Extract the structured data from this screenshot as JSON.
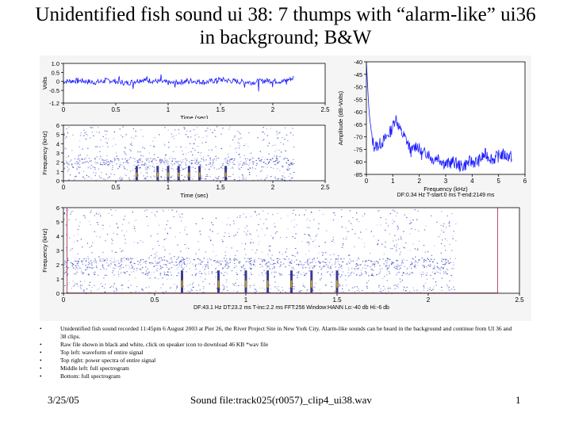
{
  "slide": {
    "title": "Unidentified fish sound ui 38: 7 thumps with “alarm-like” ui36 in background; B&W",
    "bullets": [
      "Unidentified fish sound recorded 11:45pm 6 August 2003 at Pier 26, the River Project Site in New York City.  Alarm-like sounds can be heard in the background and continue from UI 36 and 38 clips.",
      "Raw file shown in black and white, click on speaker icon to download 46 KB *wav file",
      "Top left: waveform of entire signal",
      "Top right: power spectra of entire signal",
      "Middle left: full spectrogram",
      "Bottom: full spectrogram"
    ],
    "footer": {
      "date": "3/25/05",
      "file": "Sound file:track025(r0057)_clip4_ui38.wav",
      "page": "1"
    }
  },
  "colors": {
    "trace": "#1a1aff",
    "spectro": "#2233bb",
    "axis": "#000000",
    "bg": "#f5f5f5",
    "bound": "#aa2244"
  },
  "chart_data": [
    {
      "type": "line",
      "panel": "waveform",
      "xlabel": "Time (sec)",
      "ylabel": "Volts",
      "xlim": [
        0,
        2.5
      ],
      "ylim": [
        -1.2,
        1.0
      ],
      "xticks": [
        "0",
        "0.5",
        "1",
        "1.5",
        "2",
        "2.5"
      ],
      "yticks": [
        "1.0",
        "0.5",
        "0",
        "-0.5",
        "-1.2"
      ],
      "series": [
        {
          "x": [
            0,
            0.15,
            0.3,
            0.45,
            0.6,
            0.75,
            0.9,
            1.05,
            1.2,
            1.35,
            1.5,
            1.65,
            1.8,
            1.95,
            2.1,
            2.2
          ],
          "y": [
            0.0,
            0.05,
            -0.05,
            0.05,
            -0.1,
            0.1,
            0.0,
            -0.1,
            0.05,
            -0.05,
            0.1,
            0.0,
            -0.05,
            0.05,
            0.0,
            0.2
          ]
        }
      ]
    },
    {
      "type": "line",
      "panel": "power-spectrum",
      "xlabel": "Frequency (kHz)",
      "ylabel": "Amplitude (dB-Volts)",
      "xlim": [
        0,
        6
      ],
      "ylim": [
        -85,
        -40
      ],
      "xticks": [
        "0",
        "1",
        "2",
        "3",
        "4",
        "5",
        "6"
      ],
      "yticks": [
        "-40",
        "-45",
        "-50",
        "-55",
        "-60",
        "-65",
        "-70",
        "-75",
        "-80",
        "-85"
      ],
      "caption": "DF:0.34 Hz    T-start:0 ms    T-end:2149 ms",
      "series": [
        {
          "x": [
            0,
            0.05,
            0.1,
            0.2,
            0.3,
            0.5,
            0.7,
            0.9,
            1.0,
            1.1,
            1.3,
            1.5,
            1.7,
            1.9,
            2.1,
            2.3,
            2.5,
            2.7,
            3.0,
            3.3,
            3.6,
            3.9,
            4.2,
            4.5,
            4.8,
            5.1,
            5.5
          ],
          "y": [
            -40,
            -50,
            -60,
            -70,
            -74,
            -73,
            -71,
            -68,
            -66,
            -62,
            -68,
            -71,
            -76,
            -73,
            -77,
            -76,
            -79,
            -78,
            -81,
            -80,
            -82,
            -80,
            -80,
            -77,
            -79,
            -77,
            -78
          ]
        }
      ]
    },
    {
      "type": "heatmap",
      "panel": "spectrogram-small",
      "xlabel": "Time (sec)",
      "ylabel": "Frequency (kHz)",
      "xlim": [
        0,
        2.5
      ],
      "ylim": [
        0,
        6
      ],
      "xticks": [
        "0",
        "0.5",
        "1",
        "1.5",
        "2",
        "2.5"
      ],
      "yticks": [
        "0",
        "1",
        "2",
        "3",
        "4",
        "5",
        "6"
      ],
      "thumps_sec": [
        0.7,
        0.9,
        1.0,
        1.1,
        1.2,
        1.3,
        1.55
      ]
    },
    {
      "type": "heatmap",
      "panel": "spectrogram-large",
      "xlabel": "",
      "ylabel": "Frequency (kHz)",
      "xlim": [
        0,
        2.5
      ],
      "ylim": [
        0,
        6
      ],
      "xticks": [
        "0",
        "0.5",
        "1",
        "1.5",
        "2",
        "2.5"
      ],
      "yticks": [
        "0",
        "1",
        "2",
        "3",
        "4",
        "5",
        "6"
      ],
      "caption": "DF:43.1 Hz    DT:23.2 ms    T-inc:2.2 ms    FFT:256    Window:HANN    Lo:-40 db    Hi:-6 db",
      "thumps_sec": [
        0.65,
        0.85,
        1.0,
        1.12,
        1.25,
        1.36,
        1.5
      ]
    }
  ]
}
